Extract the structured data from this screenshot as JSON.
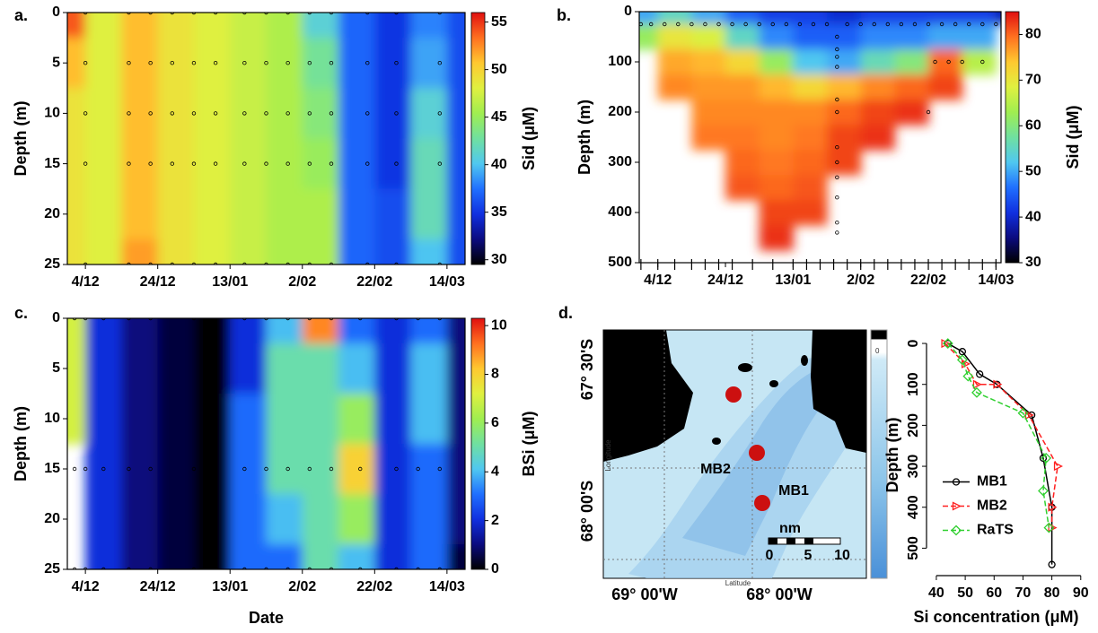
{
  "colormap": [
    "#000000",
    "#0b0b80",
    "#1030e0",
    "#2070ff",
    "#50c8f0",
    "#70e0a0",
    "#a0ee50",
    "#e0f040",
    "#ffc830",
    "#ff7020",
    "#e01010"
  ],
  "chart_data": [
    {
      "type": "contour",
      "label": "a.",
      "x": [
        -5,
        5,
        15,
        25,
        35,
        45,
        55,
        65,
        75,
        85,
        95,
        105
      ],
      "y": [
        0,
        5,
        10,
        15,
        20,
        25
      ],
      "z": [
        [
          54,
          48,
          51,
          49,
          48,
          47,
          46,
          41,
          37,
          35,
          38,
          36
        ],
        [
          51,
          48,
          51,
          49,
          48,
          47,
          46,
          43,
          37,
          35,
          39,
          36
        ],
        [
          49,
          48,
          51,
          49,
          48,
          47,
          46,
          44,
          37,
          35,
          41,
          36
        ],
        [
          49,
          48,
          51,
          49,
          48,
          47,
          46,
          45,
          37,
          35,
          42,
          36
        ],
        [
          49,
          48,
          51,
          49,
          48,
          47,
          46,
          46,
          37,
          36,
          42,
          36
        ],
        [
          49,
          48,
          52,
          49,
          48,
          47,
          46,
          46,
          37,
          36,
          40,
          36
        ]
      ],
      "xlim": [
        -5,
        105
      ],
      "ylim": [
        25,
        0
      ],
      "xticks": [
        {
          "value": 0,
          "label": "4/12"
        },
        {
          "value": 20,
          "label": "24/12"
        },
        {
          "value": 40,
          "label": "13/01"
        },
        {
          "value": 60,
          "label": "2/02"
        },
        {
          "value": 80,
          "label": "22/02"
        },
        {
          "value": 100,
          "label": "14/03"
        }
      ],
      "yticks": [
        0,
        5,
        10,
        15,
        20,
        25
      ],
      "ylabel": "Depth (m)",
      "colorbar_label": "Sid (μM)",
      "zlim": [
        29.5,
        56
      ],
      "zticks": [
        30,
        35,
        40,
        45,
        50,
        55
      ],
      "sample_dates": [
        0,
        12,
        18,
        24,
        30,
        36,
        44,
        50,
        56,
        62,
        68,
        78,
        86,
        98
      ],
      "sample_depths": [
        0,
        5,
        10,
        15,
        25
      ]
    },
    {
      "type": "contour",
      "label": "b.",
      "x": [
        -5,
        5,
        15,
        25,
        35,
        45,
        55,
        65,
        75,
        85,
        95,
        105
      ],
      "y": [
        0,
        50,
        100,
        150,
        200,
        250,
        300,
        350,
        400,
        450
      ],
      "z": [
        [
          50,
          55,
          50,
          45,
          42,
          42,
          40,
          42,
          42,
          42,
          42,
          38
        ],
        [
          62,
          70,
          68,
          55,
          48,
          45,
          45,
          48,
          48,
          50,
          50,
          null
        ],
        [
          null,
          76,
          75,
          72,
          62,
          52,
          50,
          56,
          60,
          80,
          65,
          null
        ],
        [
          null,
          78,
          77,
          77,
          75,
          72,
          75,
          78,
          80,
          82,
          null,
          null
        ],
        [
          null,
          null,
          78,
          78,
          78,
          78,
          80,
          82,
          83,
          null,
          null,
          null
        ],
        [
          null,
          null,
          79,
          79,
          78,
          79,
          82,
          83,
          null,
          null,
          null,
          null
        ],
        [
          null,
          null,
          null,
          80,
          79,
          80,
          82,
          null,
          null,
          null,
          null,
          null
        ],
        [
          null,
          null,
          null,
          81,
          80,
          81,
          null,
          null,
          null,
          null,
          null,
          null
        ],
        [
          null,
          null,
          null,
          null,
          82,
          82,
          null,
          null,
          null,
          null,
          null,
          null
        ],
        [
          null,
          null,
          null,
          null,
          83,
          null,
          null,
          null,
          null,
          null,
          null,
          null
        ]
      ],
      "xlim": [
        -5.5,
        101.5
      ],
      "ylim": [
        500,
        0
      ],
      "xticks": [
        {
          "value": 0,
          "label": "4/12"
        },
        {
          "value": 20,
          "label": "24/12"
        },
        {
          "value": 40,
          "label": "13/01"
        },
        {
          "value": 60,
          "label": "2/02"
        },
        {
          "value": 80,
          "label": "22/02"
        },
        {
          "value": 100,
          "label": "14/03"
        }
      ],
      "yticks": [
        0,
        100,
        200,
        300,
        400,
        500
      ],
      "ylabel": "Depth (m)",
      "colorbar_label": "Sid (μM)",
      "zlim": [
        30,
        85
      ],
      "zticks": [
        30,
        40,
        50,
        60,
        70,
        80
      ],
      "sample_points": {
        "x": [
          -5,
          -2,
          2,
          6,
          10,
          14,
          18,
          22,
          26,
          30,
          34,
          38,
          42,
          46,
          50,
          56,
          60,
          64,
          68,
          72,
          76,
          80,
          84,
          88,
          92,
          96,
          100,
          53,
          53,
          53,
          53,
          53,
          53,
          53,
          53,
          53,
          53,
          53,
          53,
          82,
          86,
          90,
          96,
          80
        ],
        "y": [
          25,
          25,
          25,
          25,
          25,
          25,
          25,
          25,
          25,
          25,
          25,
          25,
          25,
          25,
          25,
          25,
          25,
          25,
          25,
          25,
          25,
          25,
          25,
          25,
          25,
          25,
          25,
          50,
          75,
          90,
          110,
          175,
          200,
          270,
          300,
          330,
          370,
          420,
          440,
          100,
          100,
          100,
          100,
          200
        ]
      },
      "rug": [
        -5,
        0,
        5,
        10,
        14,
        18,
        22,
        28,
        34,
        40,
        44,
        48,
        52,
        56,
        60,
        64,
        68,
        72,
        76,
        80,
        84,
        88,
        92,
        96,
        100
      ]
    },
    {
      "type": "contour",
      "label": "c.",
      "x": [
        -5,
        5,
        15,
        25,
        35,
        45,
        55,
        65,
        75,
        85,
        95,
        105
      ],
      "y": [
        0,
        5,
        10,
        15,
        20,
        25
      ],
      "z": [
        [
          7,
          2,
          1,
          0.5,
          0,
          2,
          4,
          9,
          3,
          2,
          3,
          1
        ],
        [
          7,
          2,
          1,
          0.5,
          0,
          2,
          5,
          5,
          4,
          2,
          4,
          1
        ],
        [
          7,
          2,
          1,
          0.5,
          0,
          3,
          5,
          5,
          6,
          2,
          4,
          1
        ],
        [
          null,
          2,
          1,
          0.5,
          0,
          3,
          5,
          5,
          8,
          2,
          3,
          1
        ],
        [
          null,
          2,
          1,
          0.5,
          0,
          3,
          4,
          5,
          6,
          2,
          3,
          1
        ],
        [
          null,
          2,
          1,
          0.5,
          0,
          3,
          3,
          5,
          4,
          2,
          3,
          0.5
        ]
      ],
      "xlim": [
        -5,
        105
      ],
      "ylim": [
        25,
        0
      ],
      "xticks": [
        {
          "value": 0,
          "label": "4/12"
        },
        {
          "value": 20,
          "label": "24/12"
        },
        {
          "value": 40,
          "label": "13/01"
        },
        {
          "value": 60,
          "label": "2/02"
        },
        {
          "value": 80,
          "label": "22/02"
        },
        {
          "value": 100,
          "label": "14/03"
        }
      ],
      "yticks": [
        0,
        5,
        10,
        15,
        20,
        25
      ],
      "xlabel": "Date",
      "ylabel": "Depth (m)",
      "colorbar_label": "BSi (μM)",
      "zlim": [
        0,
        10.3
      ],
      "zticks": [
        0,
        2,
        4,
        6,
        8,
        10
      ],
      "sample_dates": [
        -3,
        0,
        5,
        12,
        18,
        30,
        44,
        50,
        56,
        62,
        68,
        76,
        86,
        92,
        98
      ],
      "sample_depths": [
        0,
        15,
        25
      ]
    },
    {
      "type": "profile",
      "label": "d.",
      "xlabel": "Si concentration (μM)",
      "ylabel": "Depth (m)",
      "xlim": [
        36.6,
        91
      ],
      "ylim": [
        567,
        -22
      ],
      "xticks": [
        40,
        50,
        60,
        70,
        80,
        90
      ],
      "yticks": [
        0,
        100,
        200,
        300,
        400,
        500
      ],
      "legend": "center left",
      "series": [
        {
          "name": "MB1",
          "color": "#000000",
          "marker": "circle",
          "dashed": false,
          "x": [
            44,
            49,
            55,
            61,
            73,
            77,
            80,
            80
          ],
          "y": [
            0,
            20,
            75,
            100,
            175,
            280,
            400,
            540
          ]
        },
        {
          "name": "MB2",
          "color": "#ff2020",
          "marker": "triangle",
          "dashed": true,
          "x": [
            43,
            50,
            54,
            61,
            72,
            82,
            80,
            80
          ],
          "y": [
            0,
            50,
            100,
            100,
            175,
            300,
            400,
            450
          ]
        },
        {
          "name": "RaTS",
          "color": "#30d030",
          "marker": "diamond",
          "dashed": true,
          "x": [
            44,
            49,
            51,
            54,
            70,
            78,
            77,
            79
          ],
          "y": [
            0,
            40,
            80,
            120,
            170,
            280,
            360,
            450
          ]
        }
      ]
    }
  ],
  "map": {
    "lat_labels": [
      "67° 30'S",
      "68° 00'S"
    ],
    "lon_labels": [
      "69° 00'W",
      "68° 00'W"
    ],
    "axis_labels": [
      "Longitude",
      "Latitude"
    ],
    "stations": [
      "MB2",
      "MB1"
    ],
    "scale_unit": "nm",
    "scale_ticks": [
      "0",
      "5",
      "10"
    ],
    "depth_bar_label": "0"
  }
}
